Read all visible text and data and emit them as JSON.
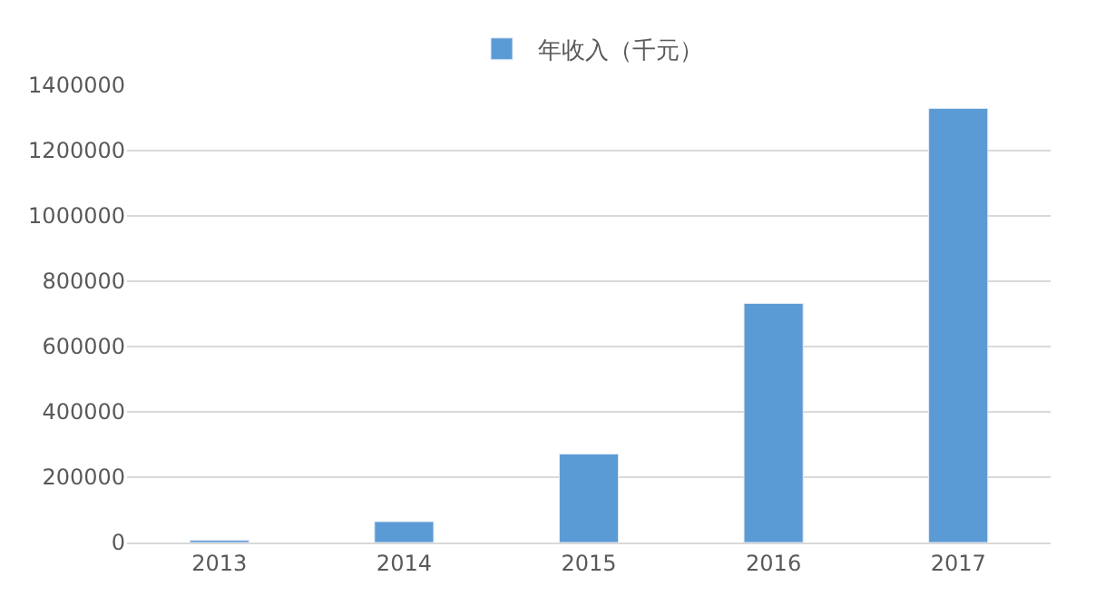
{
  "chart_data": {
    "type": "bar",
    "categories": [
      "2013",
      "2014",
      "2015",
      "2016",
      "2017"
    ],
    "series": [
      {
        "name": "年收入（千元）",
        "color": "#5b9bd5",
        "values": [
          7000,
          64000,
          271000,
          732000,
          1329000
        ]
      }
    ],
    "ylim": [
      0,
      1400000
    ],
    "yticks": [
      0,
      200000,
      400000,
      600000,
      800000,
      1000000,
      1200000,
      1400000
    ],
    "grid": "y",
    "legend": "top"
  }
}
